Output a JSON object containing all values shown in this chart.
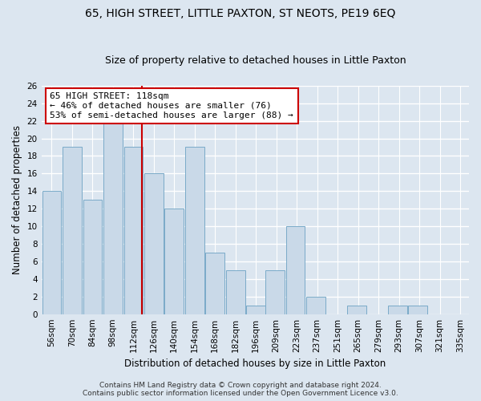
{
  "title": "65, HIGH STREET, LITTLE PAXTON, ST NEOTS, PE19 6EQ",
  "subtitle": "Size of property relative to detached houses in Little Paxton",
  "xlabel": "Distribution of detached houses by size in Little Paxton",
  "ylabel": "Number of detached properties",
  "bar_values": [
    14,
    19,
    13,
    22,
    19,
    16,
    12,
    19,
    7,
    5,
    1,
    5,
    10,
    2,
    0,
    1,
    0,
    1,
    1
  ],
  "bar_centers": [
    56,
    70,
    84,
    98,
    112,
    126,
    140,
    154,
    168,
    182,
    196,
    209,
    223,
    237,
    251,
    265,
    279,
    293,
    307
  ],
  "tick_labels": [
    "56sqm",
    "70sqm",
    "84sqm",
    "98sqm",
    "112sqm",
    "126sqm",
    "140sqm",
    "154sqm",
    "168sqm",
    "182sqm",
    "196sqm",
    "209sqm",
    "223sqm",
    "237sqm",
    "251sqm",
    "265sqm",
    "279sqm",
    "293sqm",
    "307sqm",
    "321sqm",
    "335sqm"
  ],
  "bar_color": "#c9d9e8",
  "bar_edge_color": "#7aaac8",
  "bar_width": 13.0,
  "ylim": [
    0,
    26
  ],
  "yticks": [
    0,
    2,
    4,
    6,
    8,
    10,
    12,
    14,
    16,
    18,
    20,
    22,
    24,
    26
  ],
  "red_line_x": 118,
  "annotation_line1": "65 HIGH STREET: 118sqm",
  "annotation_line2": "← 46% of detached houses are smaller (76)",
  "annotation_line3": "53% of semi-detached houses are larger (88) →",
  "annotation_box_color": "#ffffff",
  "annotation_box_edge": "#cc0000",
  "footer_line1": "Contains HM Land Registry data © Crown copyright and database right 2024.",
  "footer_line2": "Contains public sector information licensed under the Open Government Licence v3.0.",
  "background_color": "#dce6f0",
  "plot_background_color": "#dce6f0",
  "grid_color": "#ffffff",
  "title_fontsize": 10,
  "subtitle_fontsize": 9,
  "axis_label_fontsize": 8.5,
  "tick_fontsize": 7.5,
  "annotation_fontsize": 8,
  "footer_fontsize": 6.5
}
